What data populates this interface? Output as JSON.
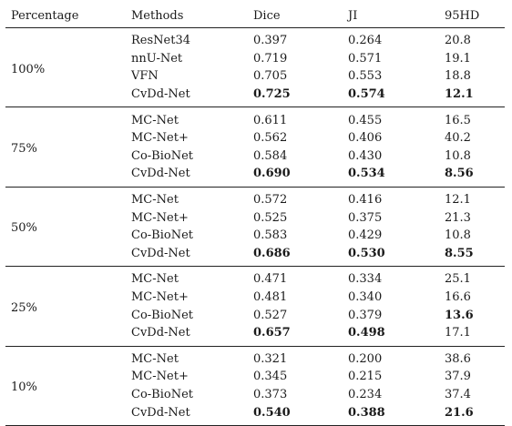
{
  "table": {
    "headers": [
      "Percentage",
      "Methods",
      "Dice",
      "JI",
      "95HD"
    ],
    "groups": [
      {
        "percentage": "100%",
        "rows": [
          {
            "method": "ResNet34",
            "dice": "0.397",
            "ji": "0.264",
            "hd": "20.8",
            "bold": []
          },
          {
            "method": "nnU-Net",
            "dice": "0.719",
            "ji": "0.571",
            "hd": "19.1",
            "bold": []
          },
          {
            "method": "VFN",
            "dice": "0.705",
            "ji": "0.553",
            "hd": "18.8",
            "bold": []
          },
          {
            "method": "CvDd-Net",
            "dice": "0.725",
            "ji": "0.574",
            "hd": "12.1",
            "bold": [
              "dice",
              "ji",
              "hd"
            ]
          }
        ]
      },
      {
        "percentage": "75%",
        "rows": [
          {
            "method": "MC-Net",
            "dice": "0.611",
            "ji": "0.455",
            "hd": "16.5",
            "bold": []
          },
          {
            "method": "MC-Net+",
            "dice": "0.562",
            "ji": "0.406",
            "hd": "40.2",
            "bold": []
          },
          {
            "method": "Co-BioNet",
            "dice": "0.584",
            "ji": "0.430",
            "hd": "10.8",
            "bold": []
          },
          {
            "method": "CvDd-Net",
            "dice": "0.690",
            "ji": "0.534",
            "hd": "8.56",
            "bold": [
              "dice",
              "ji",
              "hd"
            ]
          }
        ]
      },
      {
        "percentage": "50%",
        "rows": [
          {
            "method": "MC-Net",
            "dice": "0.572",
            "ji": "0.416",
            "hd": "12.1",
            "bold": []
          },
          {
            "method": "MC-Net+",
            "dice": "0.525",
            "ji": "0.375",
            "hd": "21.3",
            "bold": []
          },
          {
            "method": "Co-BioNet",
            "dice": "0.583",
            "ji": "0.429",
            "hd": "10.8",
            "bold": []
          },
          {
            "method": "CvDd-Net",
            "dice": "0.686",
            "ji": "0.530",
            "hd": "8.55",
            "bold": [
              "dice",
              "ji",
              "hd"
            ]
          }
        ]
      },
      {
        "percentage": "25%",
        "rows": [
          {
            "method": "MC-Net",
            "dice": "0.471",
            "ji": "0.334",
            "hd": "25.1",
            "bold": []
          },
          {
            "method": "MC-Net+",
            "dice": "0.481",
            "ji": "0.340",
            "hd": "16.6",
            "bold": []
          },
          {
            "method": "Co-BioNet",
            "dice": "0.527",
            "ji": "0.379",
            "hd": "13.6",
            "bold": [
              "hd"
            ]
          },
          {
            "method": "CvDd-Net",
            "dice": "0.657",
            "ji": "0.498",
            "hd": "17.1",
            "bold": [
              "dice",
              "ji"
            ]
          }
        ]
      },
      {
        "percentage": "10%",
        "rows": [
          {
            "method": "MC-Net",
            "dice": "0.321",
            "ji": "0.200",
            "hd": "38.6",
            "bold": []
          },
          {
            "method": "MC-Net+",
            "dice": "0.345",
            "ji": "0.215",
            "hd": "37.9",
            "bold": []
          },
          {
            "method": "Co-BioNet",
            "dice": "0.373",
            "ji": "0.234",
            "hd": "37.4",
            "bold": []
          },
          {
            "method": "CvDd-Net",
            "dice": "0.540",
            "ji": "0.388",
            "hd": "21.6",
            "bold": [
              "dice",
              "ji",
              "hd"
            ]
          }
        ]
      }
    ]
  }
}
